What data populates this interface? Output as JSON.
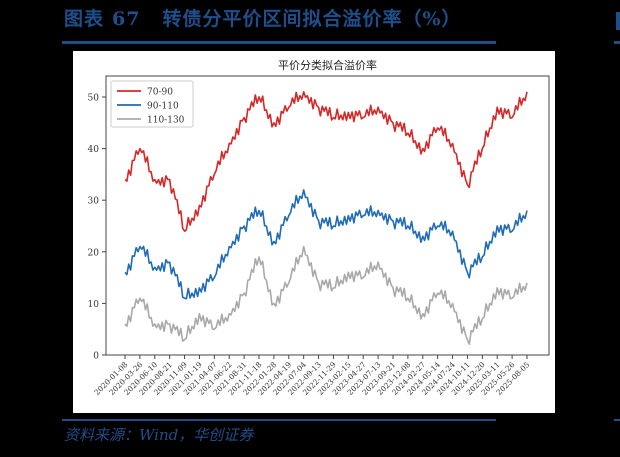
{
  "figure": {
    "label": "图表",
    "number": "67",
    "title": "转债分平价区间拟合溢价率（%）",
    "source": "资料来源：Wind，华创证券",
    "accent_color": "#1f4e8c"
  },
  "chart_data": {
    "type": "line",
    "title": "平价分类拟合溢价率",
    "xlabel": "",
    "ylabel": "",
    "ylim": [
      0,
      53
    ],
    "yticks": [
      0,
      10,
      20,
      30,
      40,
      50
    ],
    "grid": false,
    "legend_position": "upper left",
    "x": [
      "2020-01-08",
      "2020-03-26",
      "2020-06-10",
      "2020-08-21",
      "2020-11-09",
      "2021-01-19",
      "2021-04-07",
      "2021-06-22",
      "2021-08-31",
      "2021-11-18",
      "2022-01-28",
      "2022-04-19",
      "2022-07-04",
      "2022-09-13",
      "2022-11-29",
      "2023-02-15",
      "2023-04-27",
      "2023-07-13",
      "2023-09-21",
      "2023-12-08",
      "2024-02-27",
      "2024-05-14",
      "2024-07-24",
      "2024-10-11",
      "2024-12-20",
      "2025-03-11",
      "2025-05-26",
      "2025-08-05"
    ],
    "series": [
      {
        "name": "70-90",
        "color": "#d62728",
        "values": [
          34,
          40,
          34,
          34,
          24,
          29,
          35,
          41,
          46,
          50,
          45,
          48,
          51,
          48,
          46,
          47,
          46,
          48,
          45,
          43,
          40,
          44,
          41,
          33,
          40,
          48,
          46,
          51
        ]
      },
      {
        "name": "90-110",
        "color": "#1f6bb5",
        "values": [
          16,
          21,
          17,
          18,
          11,
          13,
          15,
          21,
          25,
          28,
          22,
          27,
          32,
          26,
          25,
          27,
          27,
          28,
          26,
          25,
          23,
          25,
          24,
          16,
          19,
          25,
          24,
          28
        ]
      },
      {
        "name": "110-130",
        "color": "#a9a9a9",
        "values": [
          6,
          11,
          6,
          6,
          3,
          8,
          5,
          8,
          12,
          19,
          10,
          14,
          21,
          14,
          13,
          16,
          15,
          18,
          13,
          11,
          8,
          12,
          10,
          3,
          7,
          13,
          11,
          14
        ]
      }
    ]
  }
}
